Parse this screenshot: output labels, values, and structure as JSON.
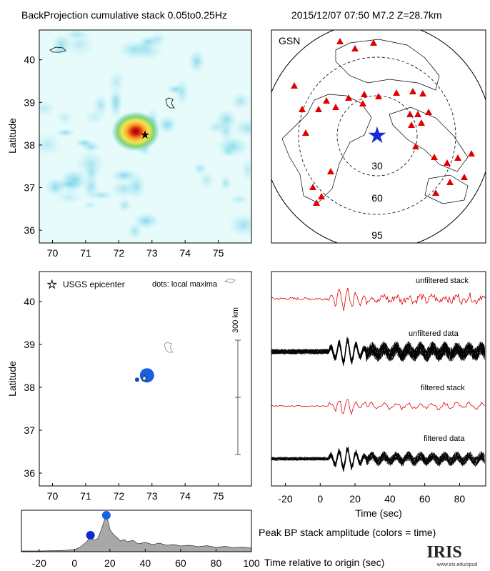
{
  "header": {
    "title": "BackProjection cumulative stack 0.05to0.25Hz",
    "event": "2015/12/07 07:50   M7.2  Z=28.7km"
  },
  "map_panel": {
    "ylabel": "Latitude",
    "x_ticks": [
      "70",
      "71",
      "72",
      "73",
      "74",
      "75"
    ],
    "y_ticks": [
      "40",
      "39",
      "38",
      "37",
      "36"
    ],
    "epicenter": {
      "lon": 72.75,
      "lat": 38.3
    }
  },
  "gsn_panel": {
    "label": "GSN",
    "ring_labels": [
      "30",
      "60",
      "95"
    ],
    "source_marker": "blue-star-icon",
    "station_marker": "red-triangle-icon"
  },
  "maxima_panel": {
    "ylabel": "Latitude",
    "legend_epicenter": "USGS epicenter",
    "legend_dots": "dots: local maxima",
    "scale_label": "300 km",
    "x_ticks": [
      "70",
      "71",
      "72",
      "73",
      "74",
      "75"
    ],
    "y_ticks": [
      "40",
      "39",
      "38",
      "37",
      "36"
    ],
    "maxima": [
      {
        "lon": 72.85,
        "lat": 38.28,
        "size": 10,
        "color": "#1a5fe0"
      },
      {
        "lon": 72.55,
        "lat": 38.18,
        "size": 3,
        "color": "#2040c0"
      }
    ]
  },
  "traces_panel": {
    "labels": [
      "unfiltered stack",
      "unfiltered data",
      "filtered stack",
      "filtered data"
    ],
    "xlabel": "Time (sec)",
    "x_ticks": [
      "-20",
      "0",
      "20",
      "40",
      "60",
      "80"
    ]
  },
  "amplitude_panel": {
    "title": "Peak BP stack amplitude (colors = time)",
    "xlabel": "Time relative to origin (sec)",
    "x_ticks": [
      "-20",
      "0",
      "20",
      "40",
      "60",
      "80",
      "100"
    ]
  },
  "logo": {
    "text": "IRIS",
    "url": "www.iris.edu/spud"
  },
  "chart_data": [
    {
      "type": "heatmap",
      "title": "BackProjection cumulative stack 0.05to0.25Hz",
      "xlabel": "",
      "ylabel": "Latitude",
      "xlim": [
        69.6,
        76.0
      ],
      "ylim": [
        35.7,
        40.7
      ],
      "peak": {
        "lon": 72.75,
        "lat": 38.3
      },
      "colors": [
        "#e8fbfb",
        "#9fe6ee",
        "#5cc8e6",
        "#2ca8d8",
        "#f2e45a",
        "#f6a21e",
        "#e2231a",
        "#8a0000"
      ]
    },
    {
      "type": "scatter",
      "ylabel": "Latitude",
      "xlim": [
        69.6,
        76.0
      ],
      "ylim": [
        35.7,
        40.7
      ],
      "series": [
        {
          "name": "dots: local maxima",
          "x": [
            72.85,
            72.55
          ],
          "y": [
            38.28,
            38.18
          ]
        }
      ]
    },
    {
      "type": "line",
      "xlabel": "Time (sec)",
      "xlim": [
        -28,
        95
      ],
      "series": [
        {
          "name": "unfiltered stack"
        },
        {
          "name": "unfiltered data"
        },
        {
          "name": "filtered stack"
        },
        {
          "name": "filtered data"
        }
      ]
    },
    {
      "type": "area",
      "title": "Peak BP stack amplitude (colors = time)",
      "xlabel": "Time relative to origin (sec)",
      "xlim": [
        -30,
        100
      ],
      "x": [
        -30,
        -20,
        -10,
        -5,
        0,
        3,
        5,
        7,
        9,
        11,
        13,
        15,
        17,
        18,
        19,
        20,
        22,
        24,
        26,
        28,
        30,
        33,
        36,
        40,
        44,
        48,
        52,
        56,
        60,
        65,
        70,
        75,
        80,
        85,
        90,
        95,
        100
      ],
      "y": [
        0.02,
        0.02,
        0.03,
        0.04,
        0.06,
        0.12,
        0.2,
        0.28,
        0.42,
        0.32,
        0.36,
        0.6,
        0.9,
        0.98,
        0.85,
        0.62,
        0.48,
        0.4,
        0.3,
        0.34,
        0.28,
        0.32,
        0.22,
        0.26,
        0.2,
        0.24,
        0.18,
        0.2,
        0.16,
        0.18,
        0.14,
        0.17,
        0.12,
        0.15,
        0.11,
        0.13,
        0.1
      ],
      "peaks": [
        {
          "time": 9,
          "color": "#0a2cd0"
        },
        {
          "time": 18,
          "color": "#1a60e8"
        }
      ]
    }
  ]
}
